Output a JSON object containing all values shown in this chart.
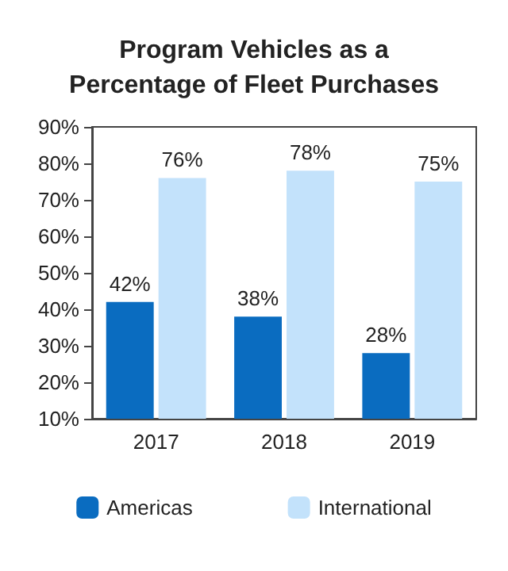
{
  "chart_data": {
    "type": "bar",
    "title": "Program Vehicles as a\nPercentage of Fleet Purchases",
    "categories": [
      "2017",
      "2018",
      "2019"
    ],
    "series": [
      {
        "name": "Americas",
        "color": "#0a6cc0",
        "values": [
          42,
          38,
          28
        ],
        "value_labels": [
          "42%",
          "38%",
          "28%"
        ]
      },
      {
        "name": "International",
        "color": "#c3e2fb",
        "values": [
          76,
          78,
          75
        ],
        "value_labels": [
          "76%",
          "78%",
          "75%"
        ]
      }
    ],
    "ylim": [
      10,
      90
    ],
    "yticks": [
      {
        "value": 10,
        "label": "10%"
      },
      {
        "value": 20,
        "label": "20%"
      },
      {
        "value": 30,
        "label": "30%"
      },
      {
        "value": 40,
        "label": "40%"
      },
      {
        "value": 50,
        "label": "50%"
      },
      {
        "value": 60,
        "label": "60%"
      },
      {
        "value": 70,
        "label": "70%"
      },
      {
        "value": 80,
        "label": "80%"
      },
      {
        "value": 90,
        "label": "90%"
      }
    ],
    "grid": false,
    "legend": "bottom"
  }
}
